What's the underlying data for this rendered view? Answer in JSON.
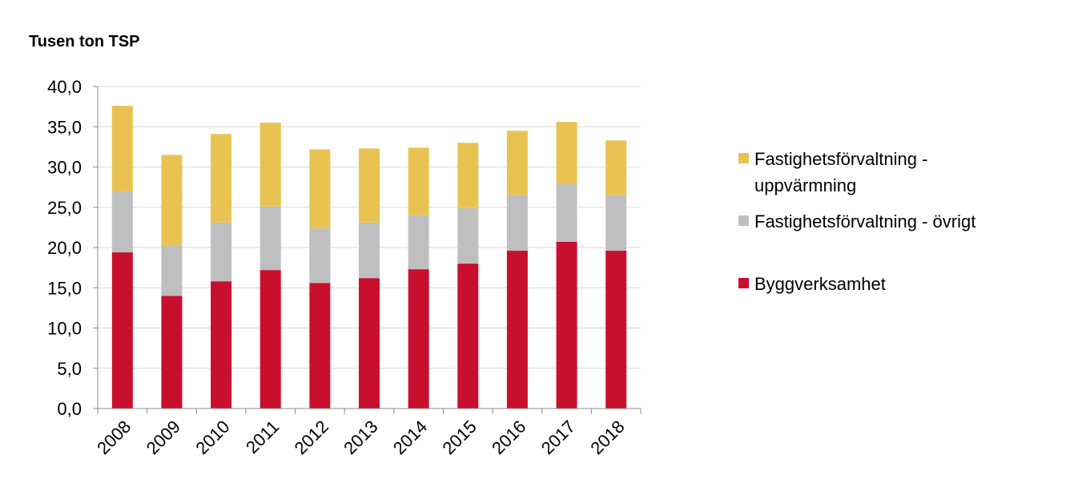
{
  "chart_data": {
    "type": "bar",
    "stacked": true,
    "unit_label": "Tusen ton TSP",
    "categories": [
      "2008",
      "2009",
      "2010",
      "2011",
      "2012",
      "2013",
      "2014",
      "2015",
      "2016",
      "2017",
      "2018"
    ],
    "series": [
      {
        "name": "Byggverksamhet",
        "color": "#c8102e",
        "values": [
          19.4,
          14.0,
          15.8,
          17.2,
          15.6,
          16.2,
          17.3,
          18.0,
          19.6,
          20.7,
          19.6
        ]
      },
      {
        "name": "Fastighetsförvaltning - övrigt",
        "color": "#bfbfbf",
        "values": [
          7.6,
          6.3,
          7.3,
          7.9,
          6.8,
          6.9,
          6.7,
          6.9,
          6.9,
          7.2,
          6.9
        ]
      },
      {
        "name": "Fastighetsförvaltning - uppvärmning",
        "color": "#e9c352",
        "values": [
          10.6,
          11.2,
          11.0,
          10.4,
          9.8,
          9.2,
          8.4,
          8.1,
          8.0,
          7.7,
          6.8
        ]
      }
    ],
    "legend_order": [
      {
        "series": 2,
        "lines": [
          "Fastighetsförvaltning -",
          "uppvärmning"
        ]
      },
      {
        "series": 1,
        "lines": [
          "Fastighetsförvaltning - övrigt"
        ]
      },
      {
        "series": 0,
        "lines": [
          "Byggverksamhet"
        ]
      }
    ],
    "yticks": [
      "0,0",
      "5,0",
      "10,0",
      "15,0",
      "20,0",
      "25,0",
      "30,0",
      "35,0",
      "40,0"
    ],
    "ylim": [
      0,
      40
    ],
    "grid": true,
    "legend_position": "right"
  }
}
